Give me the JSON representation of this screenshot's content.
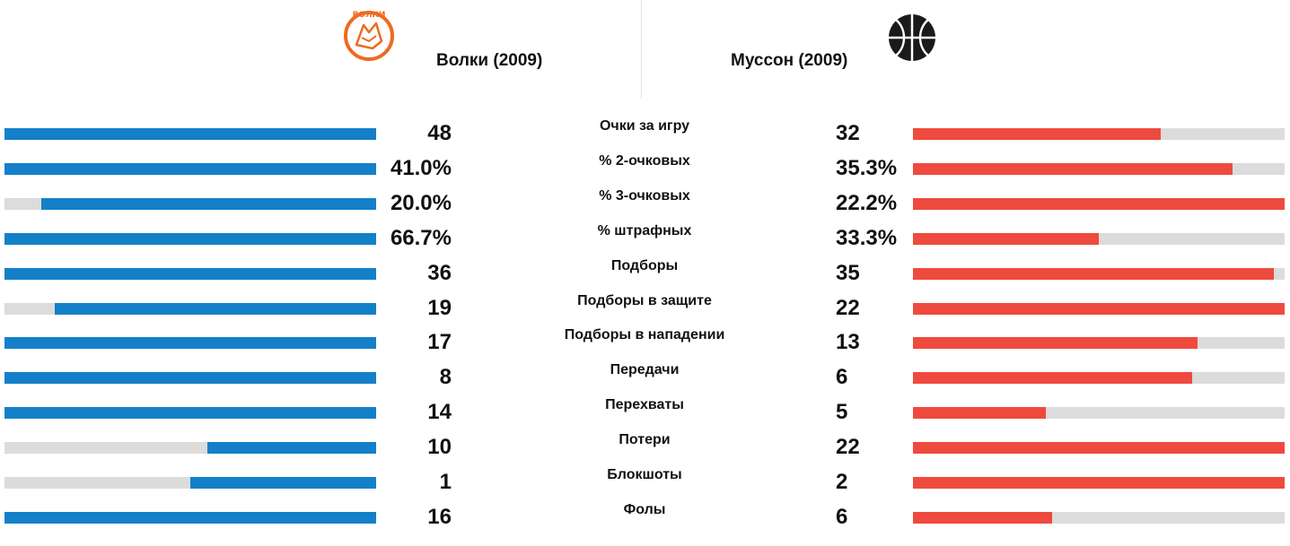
{
  "teams": {
    "left": {
      "name": "Волки (2009)",
      "logo_icon": "wolf-logo-icon",
      "logo_text": "ВОЛКИ",
      "color": "#1380c8"
    },
    "right": {
      "name": "Муссон (2009)",
      "logo_icon": "basketball-icon",
      "color": "#ee4a3d"
    }
  },
  "stats": [
    {
      "label": "Очки за игру",
      "left": "48",
      "right": "32",
      "left_fill": 1.0,
      "right_fill": 0.667
    },
    {
      "label": "% 2-очковых",
      "left": "41.0%",
      "right": "35.3%",
      "left_fill": 1.0,
      "right_fill": 0.861
    },
    {
      "label": "% 3-очковых",
      "left": "20.0%",
      "right": "22.2%",
      "left_fill": 0.9,
      "right_fill": 1.0
    },
    {
      "label": "% штрафных",
      "left": "66.7%",
      "right": "33.3%",
      "left_fill": 1.0,
      "right_fill": 0.5
    },
    {
      "label": "Подборы",
      "left": "36",
      "right": "35",
      "left_fill": 1.0,
      "right_fill": 0.972
    },
    {
      "label": "Подборы в защите",
      "left": "19",
      "right": "22",
      "left_fill": 0.864,
      "right_fill": 1.0
    },
    {
      "label": "Подборы в нападении",
      "left": "17",
      "right": "13",
      "left_fill": 1.0,
      "right_fill": 0.765
    },
    {
      "label": "Передачи",
      "left": "8",
      "right": "6",
      "left_fill": 1.0,
      "right_fill": 0.75
    },
    {
      "label": "Перехваты",
      "left": "14",
      "right": "5",
      "left_fill": 1.0,
      "right_fill": 0.357
    },
    {
      "label": "Потери",
      "left": "10",
      "right": "22",
      "left_fill": 0.455,
      "right_fill": 1.0
    },
    {
      "label": "Блокшоты",
      "left": "1",
      "right": "2",
      "left_fill": 0.5,
      "right_fill": 1.0
    },
    {
      "label": "Фолы",
      "left": "16",
      "right": "6",
      "left_fill": 1.0,
      "right_fill": 0.375
    }
  ]
}
